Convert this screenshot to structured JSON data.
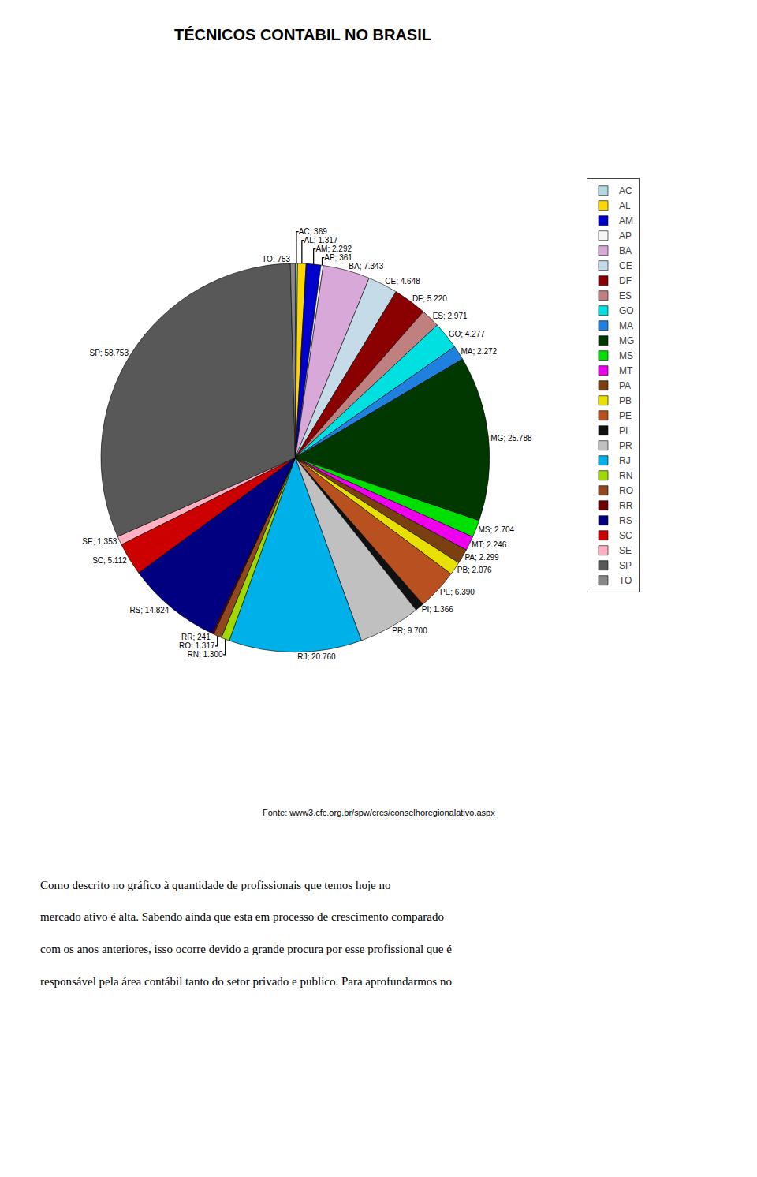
{
  "chart_data": {
    "type": "pie",
    "title": "TÉCNICOS CONTABIL NO BRASIL",
    "categories": [
      "AC",
      "AL",
      "AM",
      "AP",
      "BA",
      "CE",
      "DF",
      "ES",
      "GO",
      "MA",
      "MG",
      "MS",
      "MT",
      "PA",
      "PB",
      "PE",
      "PI",
      "PR",
      "RJ",
      "RN",
      "RO",
      "RR",
      "RS",
      "SC",
      "SE",
      "SP",
      "TO"
    ],
    "values": [
      369,
      1317,
      2292,
      361,
      7343,
      4648,
      5220,
      2971,
      4277,
      2272,
      25788,
      2704,
      2246,
      2299,
      2076,
      6390,
      1366,
      9700,
      20760,
      1300,
      1317,
      241,
      14824,
      5112,
      1353,
      58753,
      753
    ],
    "value_labels": [
      "AC; 369",
      "AL; 1.317",
      "AM; 2.292",
      "AP; 361",
      "BA; 7.343",
      "CE; 4.648",
      "DF; 5.220",
      "ES; 2.971",
      "GO; 4.277",
      "MA; 2.272",
      "MG; 25.788",
      "MS; 2.704",
      "MT; 2.246",
      "PA; 2.299",
      "PB; 2.076",
      "PE; 6.390",
      "PI; 1.366",
      "PR; 9.700",
      "RJ; 20.760",
      "RN; 1.300",
      "RO; 1.317",
      "RR; 241",
      "RS; 14.824",
      "SC; 5.112",
      "SE; 1.353",
      "SP; 58.753",
      "TO; 753"
    ],
    "colors": [
      "#b0d8df",
      "#ffd700",
      "#0000cc",
      "#f5f5f5",
      "#d8a8d8",
      "#c5dce8",
      "#8b0000",
      "#c08080",
      "#00e0e0",
      "#2080e0",
      "#003800",
      "#00e000",
      "#ee00ee",
      "#7a4010",
      "#e8e000",
      "#b85020",
      "#101010",
      "#c0c0c0",
      "#00b0e8",
      "#a0d800",
      "#904820",
      "#700000",
      "#000080",
      "#cc0000",
      "#ffb0c0",
      "#585858",
      "#888888"
    ],
    "data_labels": true,
    "legend": "right",
    "annotations": [
      "Fonte: www3.cfc.org.br/spw/crcs/conselhoregionalativo.aspx",
      "Como descrito no gráfico à quantidade de profissionais que temos hoje no",
      "mercado ativo é alta. Sabendo ainda que esta em processo de crescimento comparado",
      "com os anos anteriores, isso ocorre devido a grande procura por esse profissional que é",
      "responsável pela área contábil tanto do setor privado e publico. Para aprofundarmos no"
    ]
  }
}
